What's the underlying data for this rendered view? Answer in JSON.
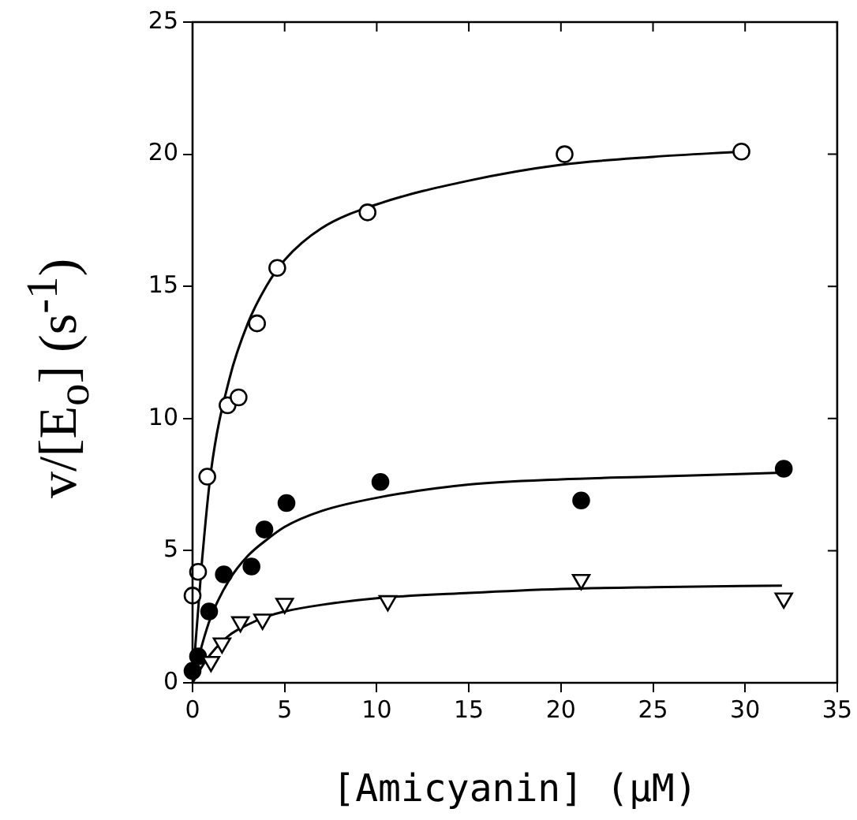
{
  "chart_data": {
    "type": "scatter",
    "xlabel": "[Amicyanin] (μM)",
    "ylabel": "v/[E$_{o}$] (s$^{-1}$)",
    "xlim": [
      0,
      35
    ],
    "xticks": [
      0,
      5,
      10,
      15,
      20,
      25,
      30,
      35
    ],
    "ylim": [
      0,
      25
    ],
    "yticks": [
      0,
      5,
      10,
      15,
      20,
      25
    ],
    "grid": false,
    "legend": false,
    "series": [
      {
        "marker": "circle",
        "color": "#000000",
        "x": [
          0,
          0.3,
          0.8,
          1.9,
          2.5,
          3.5,
          4.6,
          9.5,
          20.2,
          29.8
        ],
        "values": [
          3.3,
          4.2,
          7.8,
          10.5,
          10.8,
          13.6,
          15.7,
          17.8,
          20.0,
          20.1
        ]
      },
      {
        "marker": "circle",
        "color": "#000000",
        "x": [
          0,
          0.3,
          0.9,
          1.7,
          3.2,
          3.9,
          5.1,
          10.2,
          21.1,
          32.1
        ],
        "values": [
          0.45,
          1.0,
          2.7,
          4.1,
          4.4,
          5.8,
          6.8,
          7.6,
          6.9,
          8.1
        ]
      },
      {
        "marker": "triangle",
        "color": "#000000",
        "x": [
          1.0,
          1.6,
          2.6,
          3.8,
          5.0,
          10.6,
          21.1,
          32.1
        ],
        "values": [
          0.8,
          1.5,
          2.3,
          2.4,
          3.0,
          3.1,
          3.9,
          3.2
        ]
      },
      {
        "type": "line",
        "marker": "none",
        "color": "#000000",
        "x": [
          0,
          0.5,
          1,
          2,
          3,
          4,
          5,
          7,
          10,
          15,
          20,
          25,
          29.8
        ],
        "values": [
          0,
          4.5,
          8.0,
          11.5,
          13.6,
          15.0,
          16.0,
          17.2,
          18.1,
          19.0,
          19.6,
          19.9,
          20.1
        ]
      },
      {
        "type": "line",
        "marker": "none",
        "color": "#000000",
        "x": [
          0,
          0.5,
          1,
          2,
          3,
          4,
          5,
          7,
          10,
          15,
          20,
          25,
          32
        ],
        "values": [
          0,
          1.4,
          2.5,
          3.9,
          4.8,
          5.4,
          5.9,
          6.5,
          7.0,
          7.5,
          7.7,
          7.8,
          7.95
        ]
      },
      {
        "type": "line",
        "marker": "none",
        "color": "#000000",
        "x": [
          0,
          0.5,
          1,
          2,
          3,
          4,
          5,
          7,
          10,
          15,
          20,
          25,
          32
        ],
        "values": [
          0,
          0.6,
          1.1,
          1.8,
          2.2,
          2.5,
          2.7,
          2.95,
          3.2,
          3.4,
          3.55,
          3.62,
          3.68
        ]
      }
    ]
  }
}
